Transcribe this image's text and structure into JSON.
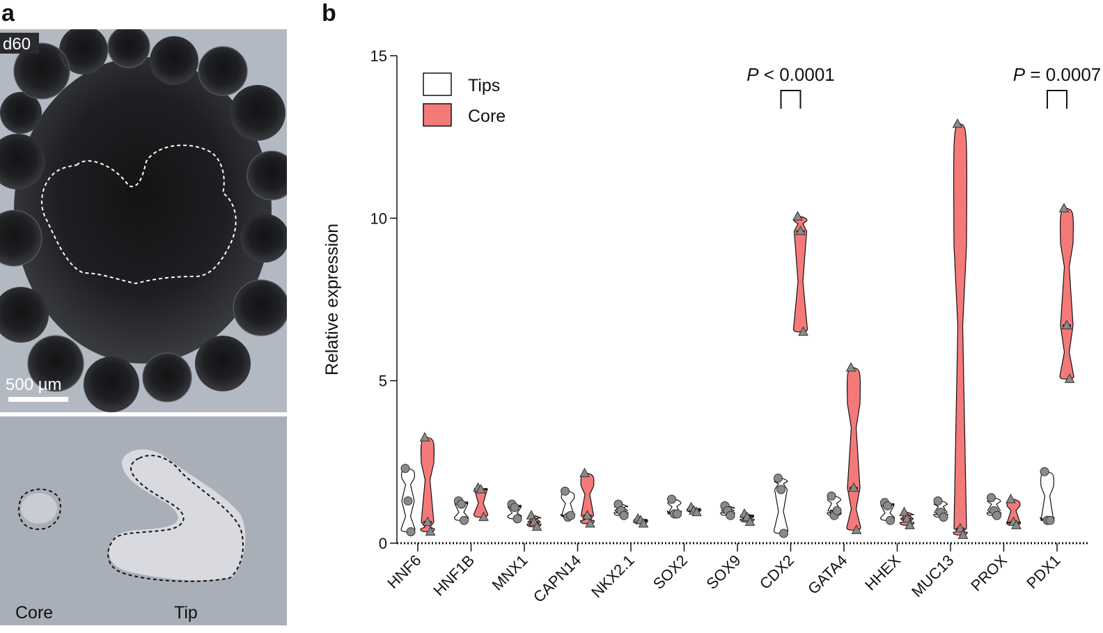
{
  "panels": {
    "a_label": "a",
    "b_label": "b"
  },
  "image_top": {
    "day_label": "d60",
    "scale_label": "500 µm"
  },
  "image_bottom": {
    "core_label": "Core",
    "tip_label": "Tip"
  },
  "colors": {
    "core_fill": "#f47a7a",
    "tips_fill": "#ffffff",
    "marker": "#8a8a8a"
  },
  "chart_data": {
    "type": "violin",
    "ylabel": "Relative expression",
    "ylim": [
      0,
      15
    ],
    "yticks": [
      0,
      5,
      10,
      15
    ],
    "legend": [
      "Tips",
      "Core"
    ],
    "legend_position": "top-left",
    "categories": [
      "HNF6",
      "HNF1B",
      "MNX1",
      "CAPN14",
      "NKX2.1",
      "SOX2",
      "SOX9",
      "CDX2",
      "GATA4",
      "HHEX",
      "MUC13",
      "PROX",
      "PDX1"
    ],
    "series": [
      {
        "name": "Tips",
        "marker": "circle",
        "values": [
          [
            2.3,
            1.3,
            0.35
          ],
          [
            1.3,
            1.2,
            0.7
          ],
          [
            1.2,
            1.1,
            0.75
          ],
          [
            1.6,
            0.8,
            0.85
          ],
          [
            1.2,
            1.0,
            0.85
          ],
          [
            1.35,
            0.9,
            0.9
          ],
          [
            1.15,
            1.0,
            0.85
          ],
          [
            2.0,
            1.65,
            0.3
          ],
          [
            1.45,
            0.85,
            1.0
          ],
          [
            1.25,
            1.15,
            0.7
          ],
          [
            1.3,
            0.95,
            0.8
          ],
          [
            1.4,
            1.0,
            0.85
          ],
          [
            2.2,
            0.7,
            0.7
          ]
        ]
      },
      {
        "name": "Core",
        "marker": "triangle",
        "values": [
          [
            3.25,
            0.65,
            0.35
          ],
          [
            1.7,
            1.65,
            0.8
          ],
          [
            0.85,
            0.65,
            0.5
          ],
          [
            2.15,
            0.85,
            0.6
          ],
          [
            0.75,
            0.7,
            0.6
          ],
          [
            1.1,
            1.0,
            0.95
          ],
          [
            0.9,
            0.8,
            0.65
          ],
          [
            10.05,
            9.6,
            6.5
          ],
          [
            5.4,
            1.7,
            0.4
          ],
          [
            0.95,
            0.75,
            0.55
          ],
          [
            12.9,
            0.45,
            0.25
          ],
          [
            1.35,
            0.65,
            0.55
          ],
          [
            10.3,
            6.7,
            5.05
          ]
        ]
      }
    ],
    "annotations": [
      {
        "category": "CDX2",
        "text_italic": "P",
        "text": " < 0.0001"
      },
      {
        "category": "PDX1",
        "text_italic": "P",
        "text": " = 0.0007"
      }
    ]
  }
}
